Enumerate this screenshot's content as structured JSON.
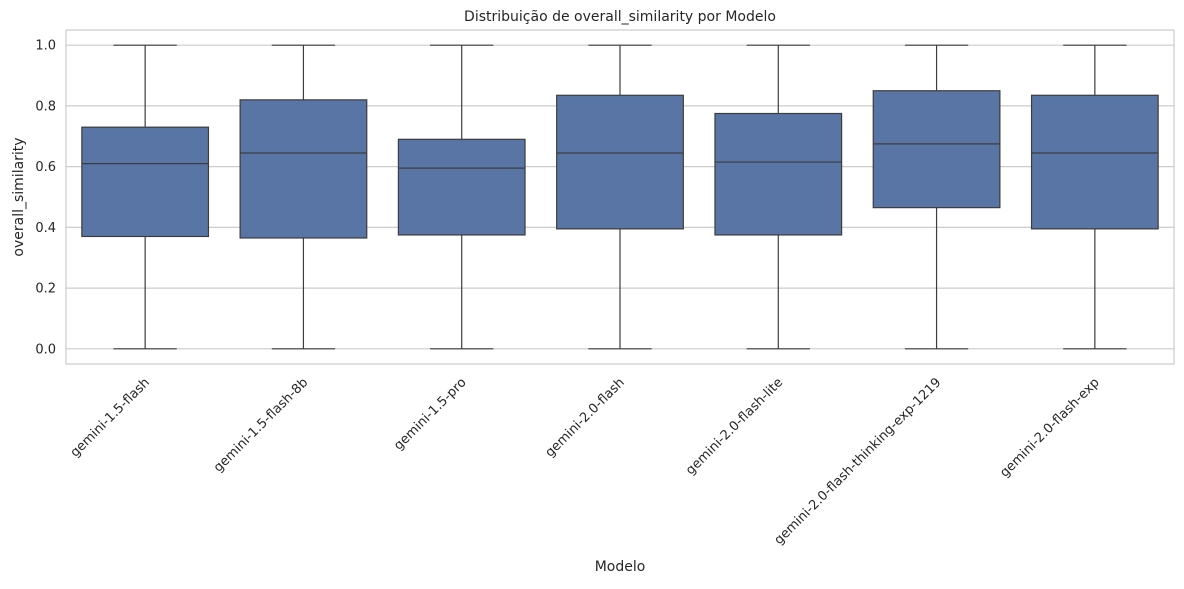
{
  "chart_data": {
    "type": "box",
    "title": "Distribuição de overall_similarity por Modelo",
    "xlabel": "Modelo",
    "ylabel": "overall_similarity",
    "ylim": [
      -0.05,
      1.05
    ],
    "yticks": [
      "0.0",
      "0.2",
      "0.4",
      "0.6",
      "0.8",
      "1.0"
    ],
    "grid": "horizontal",
    "box_color": "#5875a5",
    "line_color": "#3d3d3d",
    "categories": [
      "gemini-1.5-flash",
      "gemini-1.5-flash-8b",
      "gemini-1.5-pro",
      "gemini-2.0-flash",
      "gemini-2.0-flash-lite",
      "gemini-2.0-flash-thinking-exp-1219",
      "gemini-2.0-flash-exp"
    ],
    "boxes": [
      {
        "min": 0.0,
        "q1": 0.37,
        "median": 0.61,
        "q3": 0.73,
        "max": 1.0
      },
      {
        "min": 0.0,
        "q1": 0.365,
        "median": 0.645,
        "q3": 0.82,
        "max": 1.0
      },
      {
        "min": 0.0,
        "q1": 0.375,
        "median": 0.595,
        "q3": 0.69,
        "max": 1.0
      },
      {
        "min": 0.0,
        "q1": 0.395,
        "median": 0.645,
        "q3": 0.835,
        "max": 1.0
      },
      {
        "min": 0.0,
        "q1": 0.375,
        "median": 0.615,
        "q3": 0.775,
        "max": 1.0
      },
      {
        "min": 0.0,
        "q1": 0.465,
        "median": 0.675,
        "q3": 0.85,
        "max": 1.0
      },
      {
        "min": 0.0,
        "q1": 0.395,
        "median": 0.645,
        "q3": 0.835,
        "max": 1.0
      }
    ]
  }
}
